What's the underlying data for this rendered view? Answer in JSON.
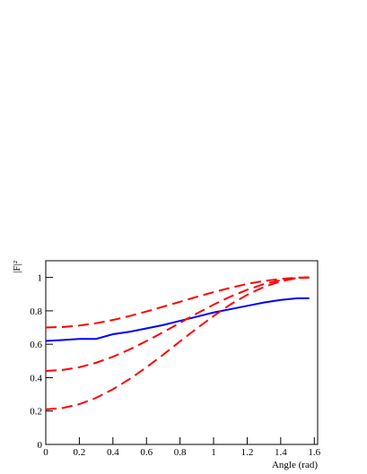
{
  "chart_data": {
    "type": "line",
    "x_label": "Angle (rad)",
    "y_label": "|F|²",
    "x": [
      0,
      0.1,
      0.2,
      0.3,
      0.4,
      0.5,
      0.6,
      0.7,
      0.8,
      0.9,
      1.0,
      1.1,
      1.2,
      1.3,
      1.4,
      1.5,
      1.57
    ],
    "series": [
      {
        "color": "#0000ff",
        "dashed": false,
        "values": [
          0.62,
          0.625,
          0.632,
          0.632,
          0.66,
          0.675,
          0.695,
          0.715,
          0.74,
          0.765,
          0.79,
          0.81,
          0.83,
          0.85,
          0.865,
          0.875,
          0.875
        ]
      },
      {
        "color": "#ff0000",
        "dashed": true,
        "values": [
          0.7,
          0.703,
          0.712,
          0.726,
          0.745,
          0.769,
          0.796,
          0.825,
          0.854,
          0.884,
          0.912,
          0.938,
          0.961,
          0.979,
          0.991,
          0.999,
          1.0
        ]
      },
      {
        "color": "#ff0000",
        "dashed": true,
        "values": [
          0.44,
          0.446,
          0.462,
          0.489,
          0.525,
          0.569,
          0.619,
          0.672,
          0.728,
          0.784,
          0.837,
          0.885,
          0.926,
          0.96,
          0.984,
          0.997,
          1.0
        ]
      },
      {
        "color": "#ff0000",
        "dashed": true,
        "values": [
          0.21,
          0.218,
          0.241,
          0.279,
          0.33,
          0.392,
          0.462,
          0.538,
          0.617,
          0.695,
          0.769,
          0.838,
          0.896,
          0.943,
          0.977,
          0.996,
          1.0
        ]
      }
    ],
    "xlim": [
      0,
      1.62
    ],
    "ylim": [
      0,
      1.1
    ],
    "xticks": [
      0,
      0.2,
      0.4,
      0.6,
      0.8,
      1,
      1.2,
      1.4,
      1.6
    ],
    "yticks": [
      0,
      0.2,
      0.4,
      0.6,
      0.8,
      1
    ]
  }
}
